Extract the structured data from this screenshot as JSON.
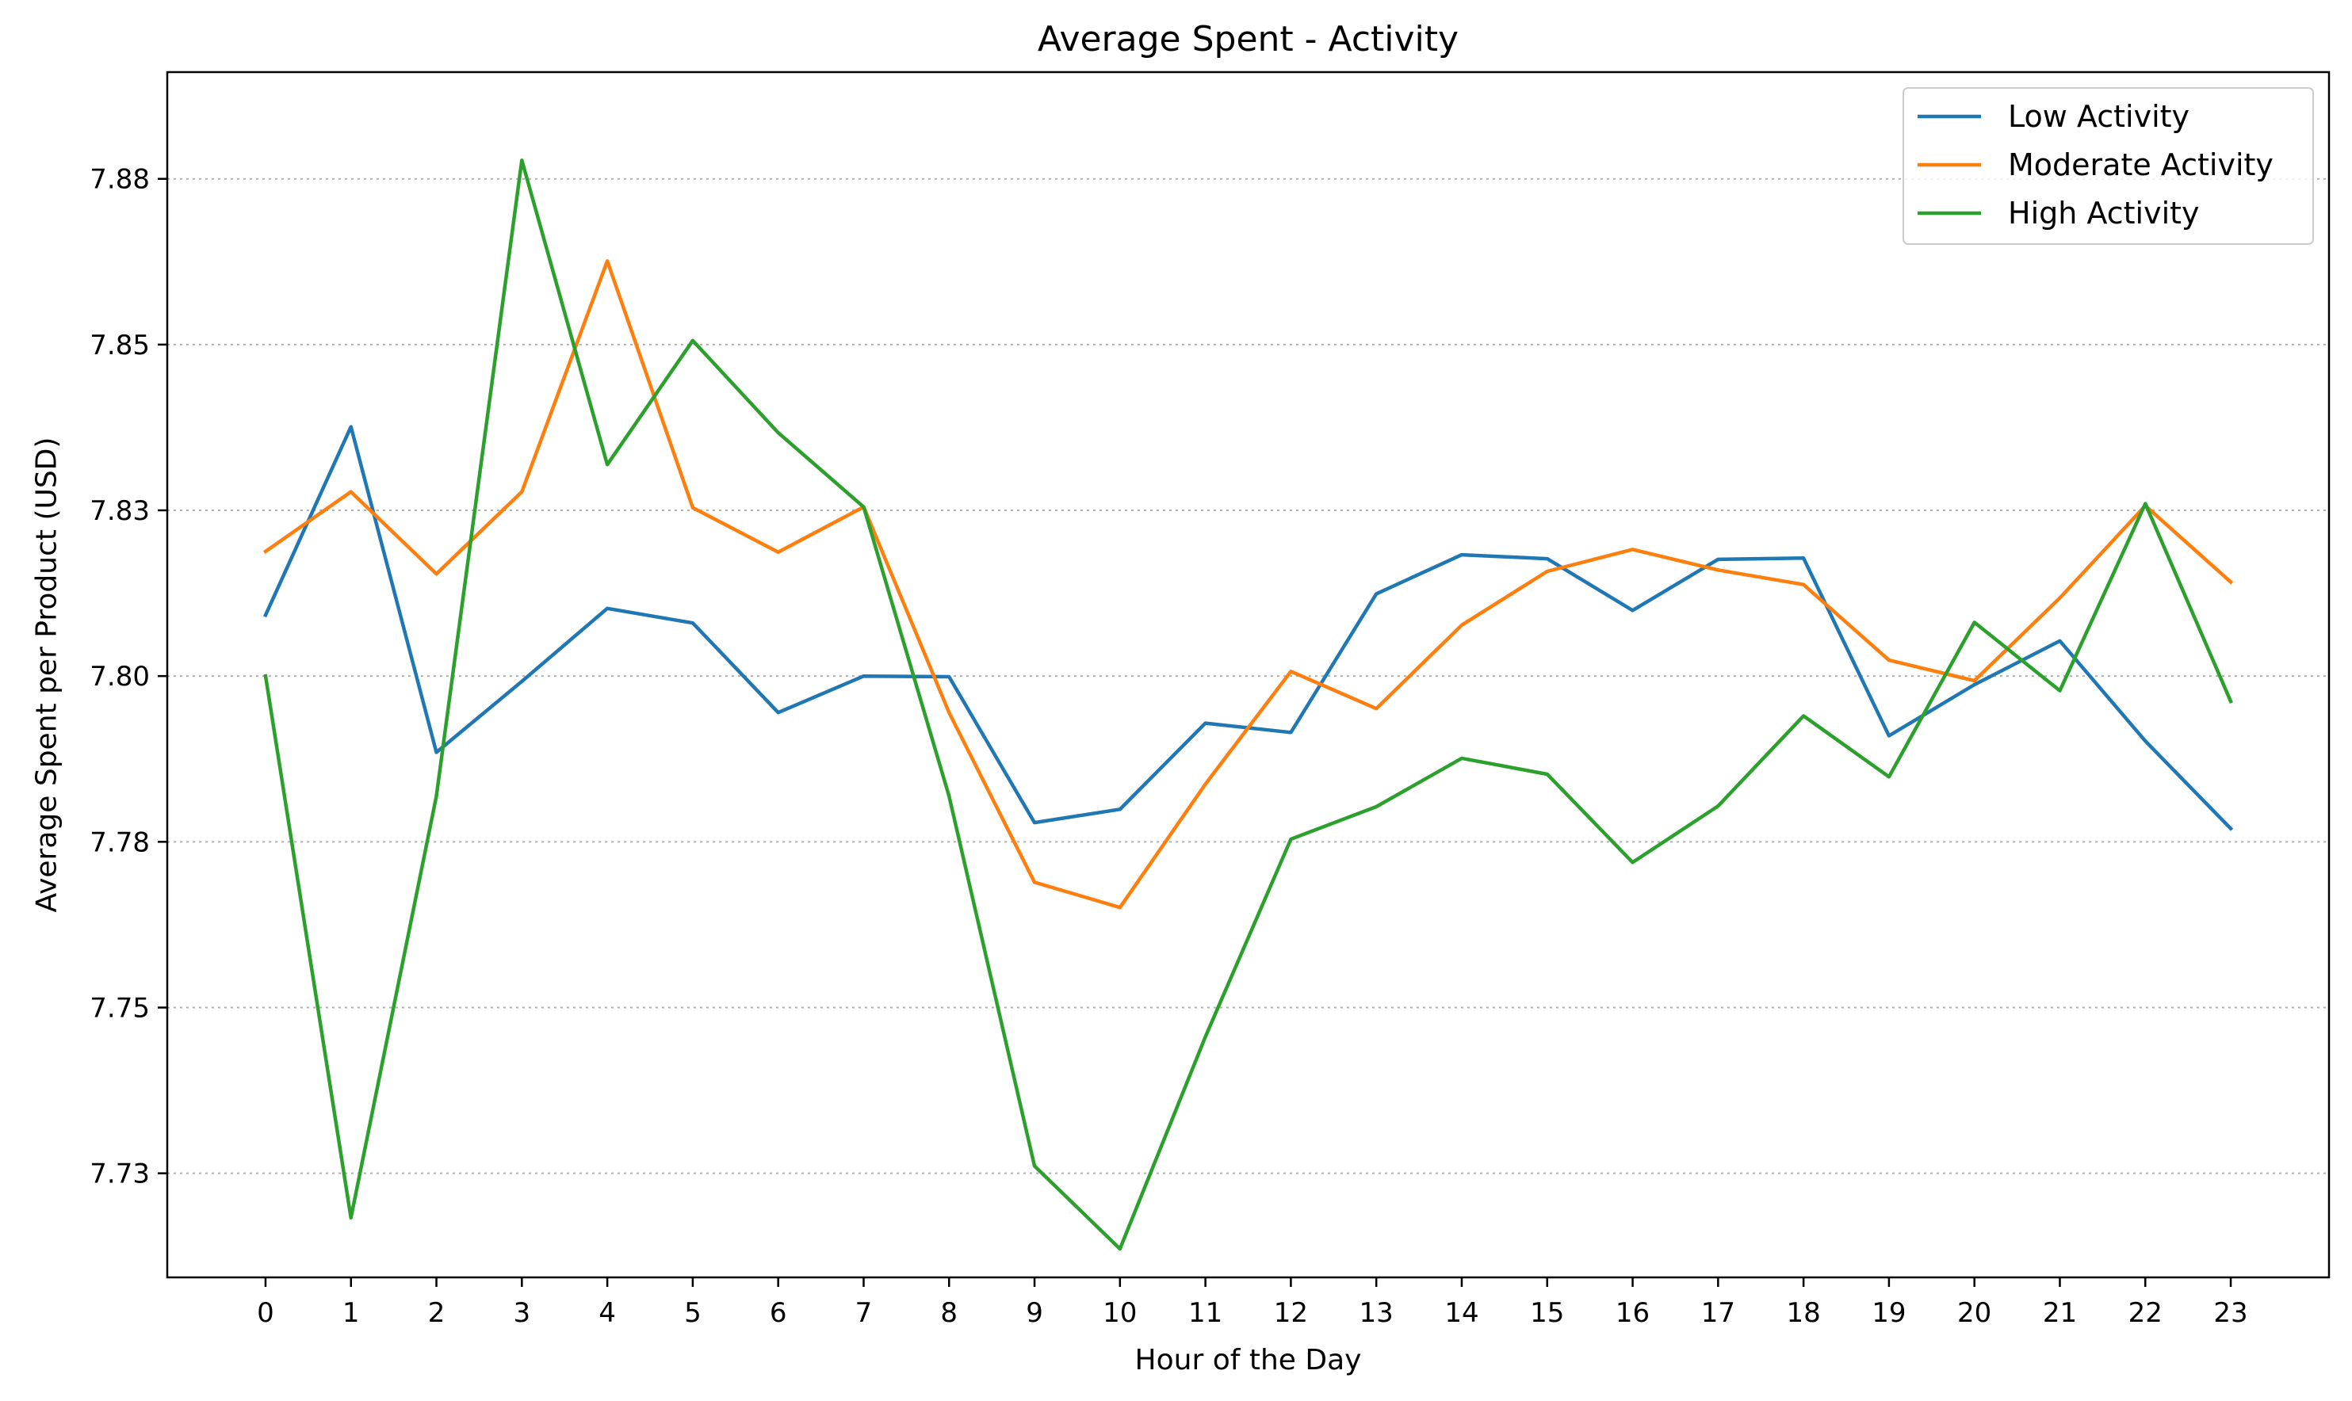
{
  "chart_data": {
    "type": "line",
    "title": "Average Spent - Activity",
    "xlabel": "Hour of the Day",
    "ylabel": "Average Spent per Product (USD)",
    "x": [
      0,
      1,
      2,
      3,
      4,
      5,
      6,
      7,
      8,
      9,
      10,
      11,
      12,
      13,
      14,
      15,
      16,
      17,
      18,
      19,
      20,
      21,
      22,
      23
    ],
    "x_tick_labels": [
      "0",
      "1",
      "2",
      "3",
      "4",
      "5",
      "6",
      "7",
      "8",
      "9",
      "10",
      "11",
      "12",
      "13",
      "14",
      "15",
      "16",
      "17",
      "18",
      "19",
      "20",
      "21",
      "22",
      "23"
    ],
    "ylim": [
      7.7093,
      7.8911
    ],
    "y_ticks": [
      7.725,
      7.75,
      7.775,
      7.8,
      7.825,
      7.85,
      7.875
    ],
    "y_tick_labels": [
      "7.73",
      "7.75",
      "7.78",
      "7.80",
      "7.83",
      "7.85",
      "7.88"
    ],
    "grid": "horizontal-dotted",
    "legend_position": "top-right",
    "series": [
      {
        "name": "Low Activity",
        "color": "#1f77b4",
        "values": [
          7.8092,
          7.8376,
          7.7885,
          7.7992,
          7.8102,
          7.808,
          7.7945,
          7.8,
          7.7999,
          7.7779,
          7.7799,
          7.7929,
          7.7915,
          7.8124,
          7.8183,
          7.8177,
          7.8099,
          7.8176,
          7.8178,
          7.791,
          7.7987,
          7.8053,
          7.7902,
          7.777
        ]
      },
      {
        "name": "Moderate Activity",
        "color": "#ff7f0e",
        "values": [
          7.8188,
          7.8278,
          7.8154,
          7.8278,
          7.8626,
          7.8254,
          7.8187,
          7.8255,
          7.7945,
          7.7689,
          7.7651,
          7.7837,
          7.8007,
          7.7951,
          7.8077,
          7.8158,
          7.8191,
          7.816,
          7.8138,
          7.8024,
          7.7993,
          7.8118,
          7.8257,
          7.8142
        ]
      },
      {
        "name": "High Activity",
        "color": "#2ca02c",
        "values": [
          7.8,
          7.7183,
          7.7819,
          7.8778,
          7.8319,
          7.8506,
          7.8367,
          7.8255,
          7.7819,
          7.7261,
          7.7136,
          7.7456,
          7.7754,
          7.7803,
          7.7876,
          7.7852,
          7.7719,
          7.7804,
          7.794,
          7.7848,
          7.8081,
          7.7978,
          7.826,
          7.7962
        ]
      }
    ]
  }
}
